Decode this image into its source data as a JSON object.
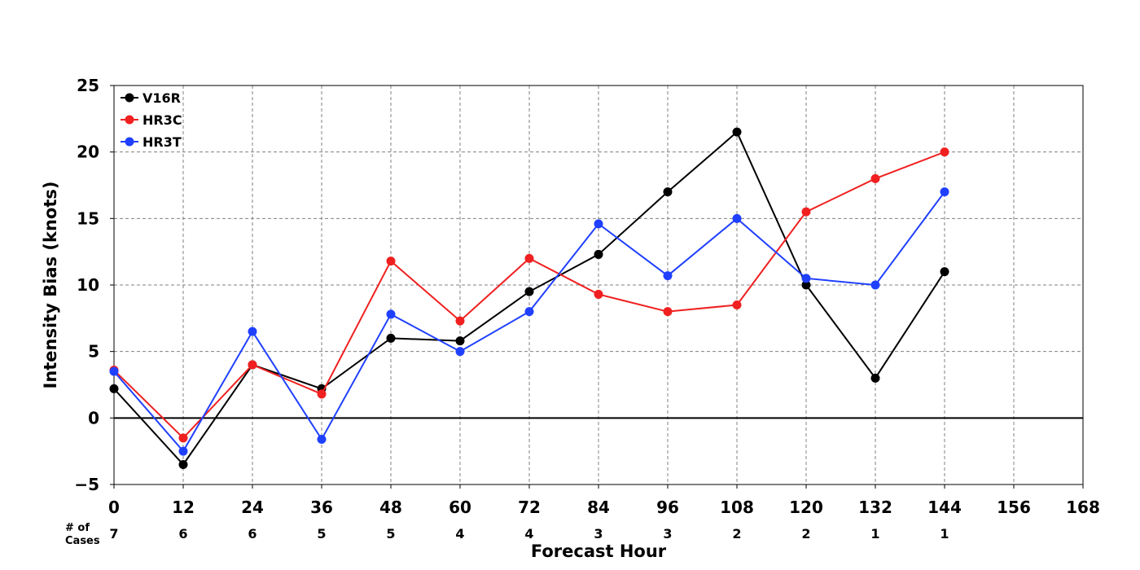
{
  "chart_data": {
    "type": "line",
    "title": "",
    "xlabel": "Forecast Hour",
    "ylabel": "Intensity Bias (knots)",
    "xlim": [
      0,
      168
    ],
    "ylim": [
      -5,
      25
    ],
    "x_ticks": [
      0,
      12,
      24,
      36,
      48,
      60,
      72,
      84,
      96,
      108,
      120,
      132,
      144,
      156,
      168
    ],
    "y_ticks": [
      -5,
      0,
      5,
      10,
      15,
      20,
      25
    ],
    "y_tick_labels": [
      "−5",
      "0",
      "5",
      "10",
      "15",
      "20",
      "25"
    ],
    "grid": true,
    "legend_position": "top-left",
    "cases_label": "# of\nCases",
    "cases": [
      7,
      6,
      6,
      5,
      5,
      4,
      4,
      3,
      3,
      2,
      2,
      1,
      1
    ],
    "x": [
      0,
      12,
      24,
      36,
      48,
      60,
      72,
      84,
      96,
      108,
      120,
      132,
      144
    ],
    "series": [
      {
        "name": "V16R",
        "color": "#000000",
        "values": [
          2.2,
          -3.5,
          4.0,
          2.2,
          6.0,
          5.8,
          9.5,
          12.3,
          17.0,
          21.5,
          10.0,
          3.0,
          11.0
        ]
      },
      {
        "name": "HR3C",
        "color": "#f02020",
        "values": [
          3.6,
          -1.5,
          4.0,
          1.8,
          11.8,
          7.3,
          12.0,
          9.3,
          8.0,
          8.5,
          15.5,
          18.0,
          20.0
        ]
      },
      {
        "name": "HR3T",
        "color": "#2040ff",
        "values": [
          3.5,
          -2.5,
          6.5,
          -1.6,
          7.8,
          5.0,
          8.0,
          14.6,
          10.7,
          15.0,
          10.5,
          10.0,
          17.0
        ]
      }
    ]
  }
}
